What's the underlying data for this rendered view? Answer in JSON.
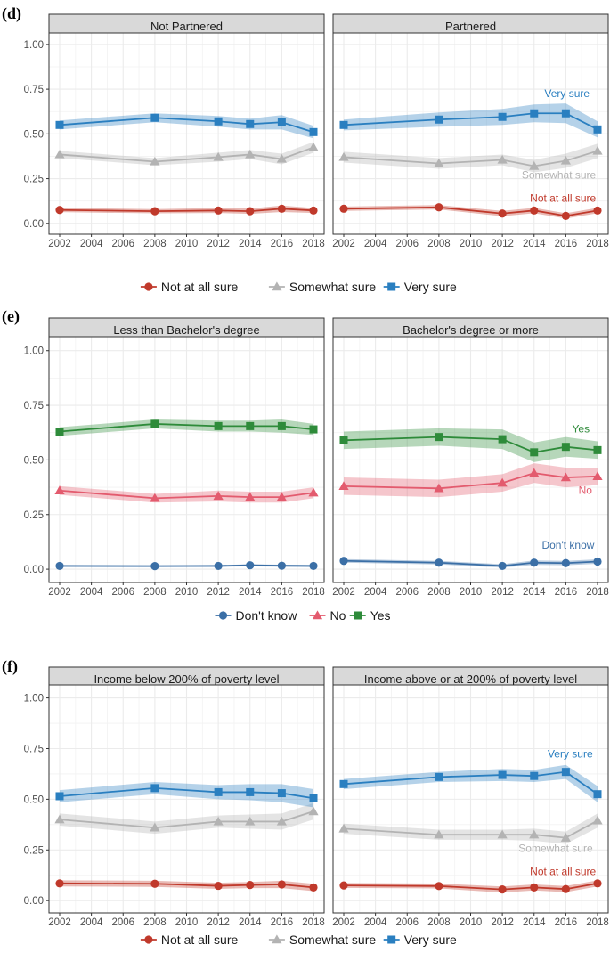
{
  "colors": {
    "red": "#C0392B",
    "gray": "#B3B3B3",
    "blue": "#2A7FC0",
    "navy": "#3B6FA6",
    "pink": "#E35B6E",
    "green": "#2E8B3A",
    "strip_bg": "#D9D9D9",
    "grid": "#EBEBEB",
    "frame": "#333333"
  },
  "chart_data": [
    {
      "type": "line",
      "label": "(d)",
      "x": [
        2002,
        2008,
        2012,
        2014,
        2016,
        2018
      ],
      "x_ticks": [
        "2002",
        "2004",
        "2006",
        "2008",
        "2010",
        "2012",
        "2014",
        "2016",
        "2018"
      ],
      "y_ticks": [
        "0.00",
        "0.25",
        "0.50",
        "0.75",
        "1.00"
      ],
      "xlim": [
        2002,
        2018
      ],
      "ylim": [
        0,
        1
      ],
      "legend": [
        {
          "name": "Not at all sure",
          "color": "red",
          "shape": "circle"
        },
        {
          "name": "Somewhat sure",
          "color": "gray",
          "shape": "triangle"
        },
        {
          "name": "Very sure",
          "color": "blue",
          "shape": "square"
        }
      ],
      "facets": [
        {
          "title": "Not Partnered",
          "series": [
            {
              "name": "Not at all sure",
              "color": "red",
              "shape": "circle",
              "values": [
                0.075,
                0.068,
                0.072,
                0.068,
                0.082,
                0.072
              ],
              "band": [
                0.012,
                0.012,
                0.014,
                0.015,
                0.018,
                0.014
              ]
            },
            {
              "name": "Somewhat sure",
              "color": "gray",
              "shape": "triangle",
              "values": [
                0.385,
                0.345,
                0.37,
                0.385,
                0.36,
                0.425
              ],
              "band": [
                0.02,
                0.02,
                0.025,
                0.025,
                0.03,
                0.03
              ]
            },
            {
              "name": "Very sure",
              "color": "blue",
              "shape": "square",
              "values": [
                0.55,
                0.59,
                0.57,
                0.555,
                0.565,
                0.51
              ],
              "band": [
                0.025,
                0.025,
                0.03,
                0.03,
                0.04,
                0.035
              ]
            }
          ],
          "annotations": []
        },
        {
          "title": "Partnered",
          "series": [
            {
              "name": "Not at all sure",
              "color": "red",
              "shape": "circle",
              "values": [
                0.082,
                0.09,
                0.055,
                0.072,
                0.042,
                0.072
              ],
              "band": [
                0.012,
                0.012,
                0.015,
                0.015,
                0.015,
                0.015
              ]
            },
            {
              "name": "Somewhat sure",
              "color": "gray",
              "shape": "triangle",
              "values": [
                0.37,
                0.335,
                0.355,
                0.32,
                0.35,
                0.405
              ],
              "band": [
                0.03,
                0.03,
                0.03,
                0.035,
                0.04,
                0.04
              ]
            },
            {
              "name": "Very sure",
              "color": "blue",
              "shape": "square",
              "values": [
                0.55,
                0.58,
                0.595,
                0.615,
                0.615,
                0.525
              ],
              "band": [
                0.03,
                0.04,
                0.045,
                0.05,
                0.055,
                0.045
              ]
            }
          ],
          "annotations": [
            {
              "text": "Very sure",
              "color": "blue",
              "x": 2017.5,
              "y": 0.705,
              "anchor": "end"
            },
            {
              "text": "Somewhat sure",
              "color": "gray",
              "x": 2017.9,
              "y": 0.25,
              "anchor": "end"
            },
            {
              "text": "Not at all sure",
              "color": "red",
              "x": 2017.9,
              "y": 0.12,
              "anchor": "end"
            }
          ]
        }
      ]
    },
    {
      "type": "line",
      "label": "(e)",
      "x": [
        2002,
        2008,
        2012,
        2014,
        2016,
        2018
      ],
      "x_ticks": [
        "2002",
        "2004",
        "2006",
        "2008",
        "2010",
        "2012",
        "2014",
        "2016",
        "2018"
      ],
      "y_ticks": [
        "0.00",
        "0.25",
        "0.50",
        "0.75",
        "1.00"
      ],
      "xlim": [
        2002,
        2018
      ],
      "ylim": [
        0,
        1
      ],
      "legend": [
        {
          "name": "Don't know",
          "color": "navy",
          "shape": "circle"
        },
        {
          "name": "No",
          "color": "pink",
          "shape": "triangle"
        },
        {
          "name": "Yes",
          "color": "green",
          "shape": "square"
        }
      ],
      "facets": [
        {
          "title": "Less than Bachelor's degree",
          "series": [
            {
              "name": "Don't know",
              "color": "navy",
              "shape": "circle",
              "values": [
                0.015,
                0.014,
                0.015,
                0.018,
                0.016,
                0.015
              ],
              "band": [
                0.004,
                0.004,
                0.004,
                0.005,
                0.005,
                0.005
              ]
            },
            {
              "name": "No",
              "color": "pink",
              "shape": "triangle",
              "values": [
                0.36,
                0.325,
                0.335,
                0.33,
                0.33,
                0.35
              ],
              "band": [
                0.02,
                0.02,
                0.025,
                0.025,
                0.025,
                0.025
              ]
            },
            {
              "name": "Yes",
              "color": "green",
              "shape": "square",
              "values": [
                0.63,
                0.665,
                0.655,
                0.655,
                0.655,
                0.64
              ],
              "band": [
                0.02,
                0.02,
                0.025,
                0.025,
                0.03,
                0.025
              ]
            }
          ],
          "annotations": []
        },
        {
          "title": "Bachelor's degree or more",
          "series": [
            {
              "name": "Don't know",
              "color": "navy",
              "shape": "circle",
              "values": [
                0.038,
                0.03,
                0.015,
                0.03,
                0.028,
                0.035
              ],
              "band": [
                0.008,
                0.008,
                0.008,
                0.01,
                0.01,
                0.01
              ]
            },
            {
              "name": "No",
              "color": "pink",
              "shape": "triangle",
              "values": [
                0.38,
                0.37,
                0.395,
                0.44,
                0.42,
                0.425
              ],
              "band": [
                0.04,
                0.04,
                0.04,
                0.045,
                0.045,
                0.04
              ]
            },
            {
              "name": "Yes",
              "color": "green",
              "shape": "square",
              "values": [
                0.59,
                0.605,
                0.595,
                0.535,
                0.56,
                0.545
              ],
              "band": [
                0.04,
                0.04,
                0.045,
                0.045,
                0.045,
                0.04
              ]
            }
          ],
          "annotations": [
            {
              "text": "Yes",
              "color": "green",
              "x": 2017.5,
              "y": 0.625,
              "anchor": "end"
            },
            {
              "text": "No",
              "color": "pink",
              "x": 2016.8,
              "y": 0.345,
              "anchor": "start"
            },
            {
              "text": "Don't know",
              "color": "navy",
              "x": 2017.8,
              "y": 0.095,
              "anchor": "end"
            }
          ]
        }
      ]
    },
    {
      "type": "line",
      "label": "(f)",
      "x": [
        2002,
        2008,
        2012,
        2014,
        2016,
        2018
      ],
      "x_ticks": [
        "2002",
        "2004",
        "2006",
        "2008",
        "2010",
        "2012",
        "2014",
        "2016",
        "2018"
      ],
      "y_ticks": [
        "0.00",
        "0.25",
        "0.50",
        "0.75",
        "1.00"
      ],
      "xlim": [
        2002,
        2018
      ],
      "ylim": [
        0,
        1
      ],
      "legend": [
        {
          "name": "Not at all sure",
          "color": "red",
          "shape": "circle"
        },
        {
          "name": "Somewhat sure",
          "color": "gray",
          "shape": "triangle"
        },
        {
          "name": "Very sure",
          "color": "blue",
          "shape": "square"
        }
      ],
      "facets": [
        {
          "title": "Income below 200% of poverty level",
          "series": [
            {
              "name": "Not at all sure",
              "color": "red",
              "shape": "circle",
              "values": [
                0.085,
                0.083,
                0.073,
                0.077,
                0.08,
                0.065
              ],
              "band": [
                0.015,
                0.015,
                0.015,
                0.015,
                0.018,
                0.018
              ]
            },
            {
              "name": "Somewhat sure",
              "color": "gray",
              "shape": "triangle",
              "values": [
                0.4,
                0.36,
                0.39,
                0.39,
                0.39,
                0.44
              ],
              "band": [
                0.03,
                0.03,
                0.03,
                0.035,
                0.04,
                0.04
              ]
            },
            {
              "name": "Very sure",
              "color": "blue",
              "shape": "square",
              "values": [
                0.515,
                0.555,
                0.535,
                0.535,
                0.53,
                0.505
              ],
              "band": [
                0.03,
                0.03,
                0.035,
                0.04,
                0.045,
                0.045
              ]
            }
          ],
          "annotations": []
        },
        {
          "title": "Income above or at 200% of poverty level",
          "series": [
            {
              "name": "Not at all sure",
              "color": "red",
              "shape": "circle",
              "values": [
                0.075,
                0.072,
                0.055,
                0.065,
                0.057,
                0.085
              ],
              "band": [
                0.012,
                0.012,
                0.015,
                0.015,
                0.015,
                0.015
              ]
            },
            {
              "name": "Somewhat sure",
              "color": "gray",
              "shape": "triangle",
              "values": [
                0.355,
                0.325,
                0.325,
                0.325,
                0.31,
                0.395
              ],
              "band": [
                0.025,
                0.025,
                0.025,
                0.03,
                0.03,
                0.035
              ]
            },
            {
              "name": "Very sure",
              "color": "blue",
              "shape": "square",
              "values": [
                0.575,
                0.61,
                0.62,
                0.615,
                0.635,
                0.525
              ],
              "band": [
                0.025,
                0.025,
                0.03,
                0.03,
                0.035,
                0.04
              ]
            }
          ],
          "annotations": [
            {
              "text": "Very sure",
              "color": "blue",
              "x": 2017.7,
              "y": 0.705,
              "anchor": "end"
            },
            {
              "text": "Somewhat sure",
              "color": "gray",
              "x": 2017.7,
              "y": 0.24,
              "anchor": "end"
            },
            {
              "text": "Not at all sure",
              "color": "red",
              "x": 2017.9,
              "y": 0.125,
              "anchor": "end"
            }
          ]
        }
      ]
    }
  ]
}
